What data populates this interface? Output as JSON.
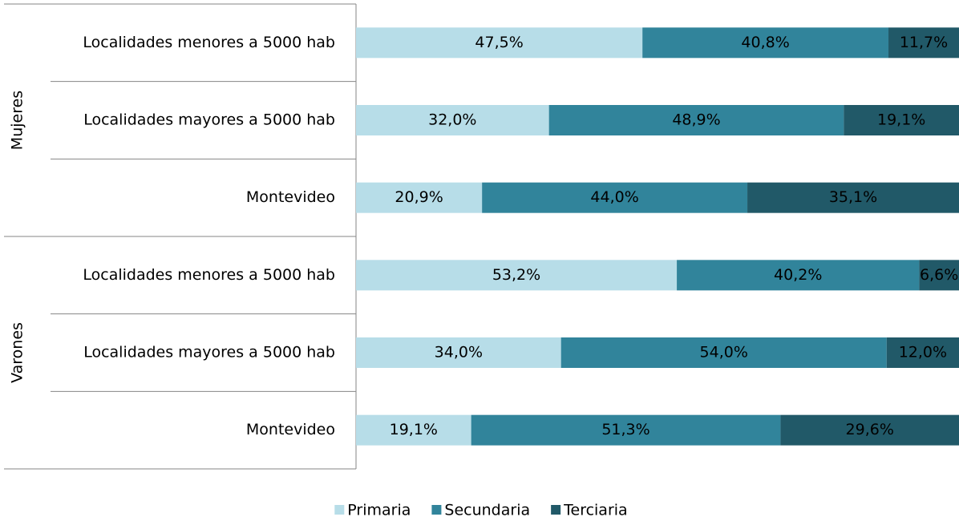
{
  "chart_data": {
    "type": "stacked-bar-horizontal",
    "group_labels": [
      "Mujeres",
      "Varones"
    ],
    "categories": [
      "Localidades menores a 5000 hab",
      "Localidades mayores a 5000 hab",
      "Montevideo",
      "Localidades menores a 5000 hab",
      "Localidades mayores a 5000 hab",
      "Montevideo"
    ],
    "xlim": [
      0,
      100
    ],
    "legend": "bottom",
    "series": [
      {
        "name": "Primaria",
        "color": "#b7dde8",
        "values": [
          47.5,
          32.0,
          20.9,
          53.2,
          34.0,
          19.1
        ],
        "value_labels": [
          "47,5%",
          "32,0%",
          "20,9%",
          "53,2%",
          "34,0%",
          "19,1%"
        ]
      },
      {
        "name": "Secundaria",
        "color": "#31849b",
        "values": [
          40.8,
          48.9,
          44.0,
          40.2,
          54.0,
          51.3
        ],
        "value_labels": [
          "40,8%",
          "48,9%",
          "44,0%",
          "40,2%",
          "54,0%",
          "51,3%"
        ]
      },
      {
        "name": "Terciaria",
        "color": "#215968",
        "values": [
          11.7,
          19.1,
          35.1,
          6.6,
          12.0,
          29.6
        ],
        "value_labels": [
          "11,7%",
          "19,1%",
          "35,1%",
          "6,6%",
          "12,0%",
          "29,6%"
        ]
      }
    ]
  }
}
